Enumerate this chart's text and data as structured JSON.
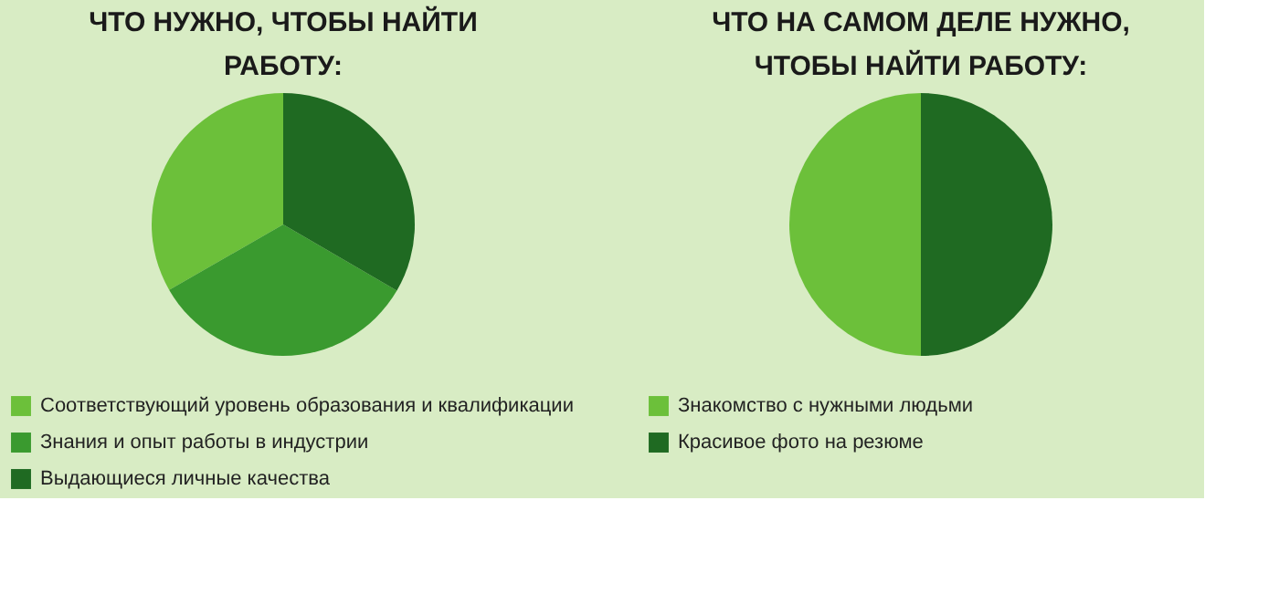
{
  "chart_data": [
    {
      "type": "pie",
      "title": "ЧТО НУЖНО, ЧТОБЫ НАЙТИ РАБОТУ:",
      "categories": [
        "Соответствующий уровень образования и квалификации",
        "Знания и опыт работы в индустрии",
        "Выдающиеся личные качества"
      ],
      "values": [
        33.3,
        33.3,
        33.4
      ],
      "colors": [
        "#6cc03a",
        "#3a9a2f",
        "#1f6a22"
      ],
      "legend": "bottom"
    },
    {
      "type": "pie",
      "title": "ЧТО НА САМОМ ДЕЛЕ НУЖНО, ЧТОБЫ НАЙТИ РАБОТУ:",
      "categories": [
        "Знакомство с нужными людьми",
        "Красивое фото на резюме"
      ],
      "values": [
        50,
        50
      ],
      "colors": [
        "#6cc03a",
        "#1f6a22"
      ],
      "legend": "bottom"
    }
  ]
}
